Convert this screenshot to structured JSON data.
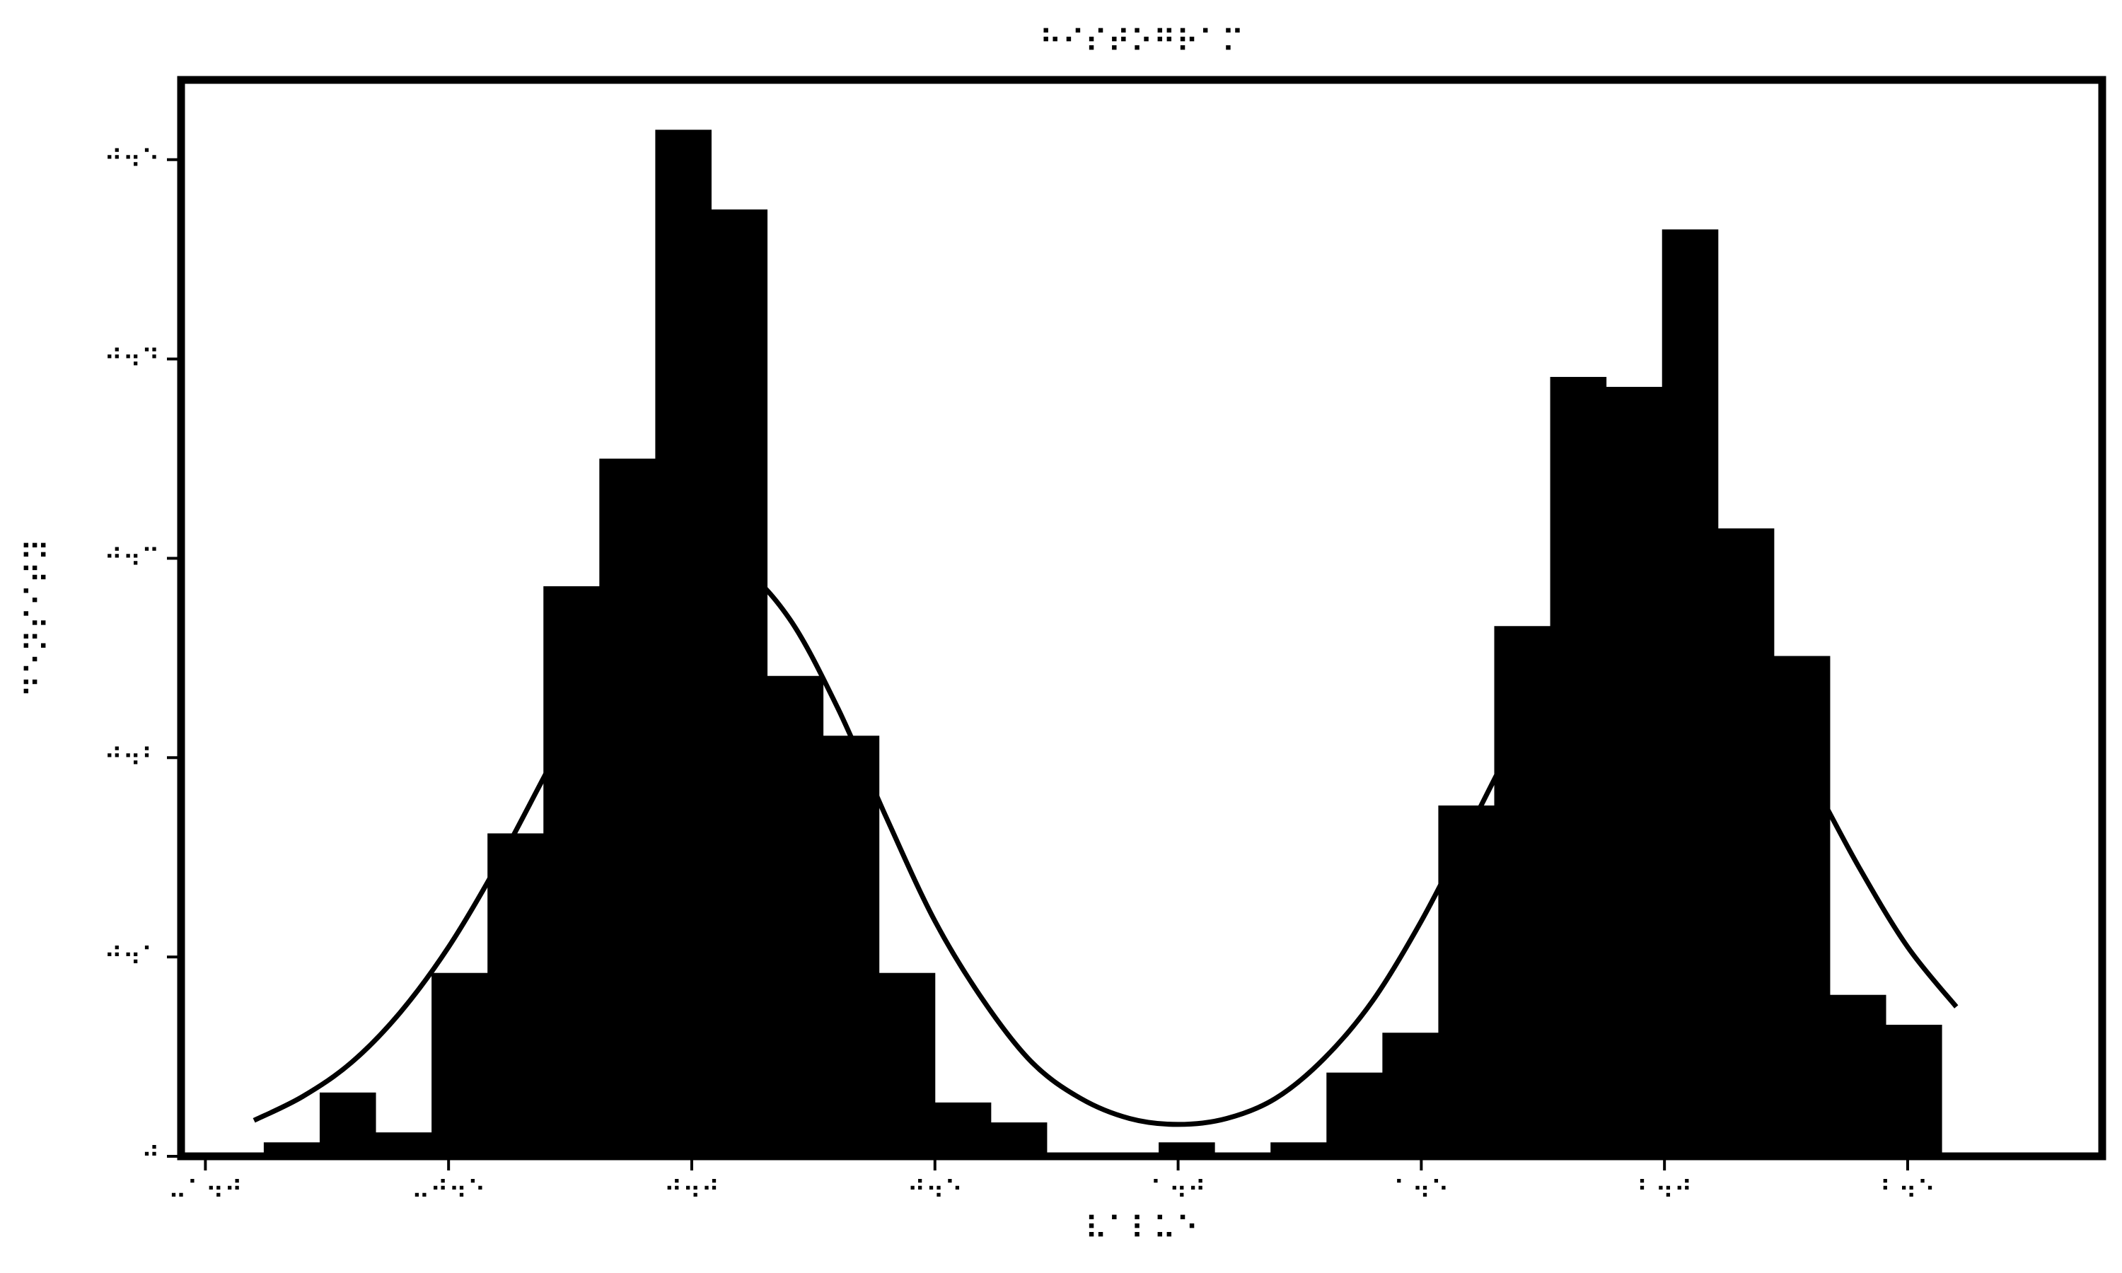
{
  "chart_data": {
    "type": "bar",
    "title": "⠓⠊⠎⠞⠕⠛⠗⠁⠍",
    "xlabel": "⠧⠁⠇⠥⠑",
    "ylabel": "⠙⠑⠝⠎⠊⠞⠽",
    "xlim": [
      -1.05,
      2.9
    ],
    "ylim": [
      0,
      0.54
    ],
    "xticks": [
      -1.0,
      -0.5,
      0.0,
      0.5,
      1.0,
      1.5,
      2.0,
      2.5
    ],
    "xtick_labels": [
      "⠤⠁⠲⠚",
      "⠤⠚⠲⠑",
      "⠚⠲⠚",
      "⠚⠲⠑",
      "⠁⠲⠚",
      "⠁⠲⠑",
      "⠃⠲⠚",
      "⠃⠲⠑"
    ],
    "yticks": [
      0.0,
      0.1,
      0.2,
      0.3,
      0.4,
      0.5
    ],
    "ytick_labels": [
      "⠚",
      "⠚⠲⠁",
      "⠚⠲⠃",
      "⠚⠲⠉",
      "⠚⠲⠙",
      "⠚⠲⠑"
    ],
    "grid": false,
    "legend": "none",
    "colors": {
      "bars": "#000000",
      "curve": "#000000",
      "frame": "#000000",
      "background": "#ffffff"
    },
    "bins": [
      {
        "x0": -0.88,
        "x1": -0.765,
        "value": 0.007
      },
      {
        "x0": -0.765,
        "x1": -0.65,
        "value": 0.032
      },
      {
        "x0": -0.65,
        "x1": -0.535,
        "value": 0.012
      },
      {
        "x0": -0.535,
        "x1": -0.42,
        "value": 0.092
      },
      {
        "x0": -0.42,
        "x1": -0.305,
        "value": 0.162
      },
      {
        "x0": -0.305,
        "x1": -0.19,
        "value": 0.286
      },
      {
        "x0": -0.19,
        "x1": -0.075,
        "value": 0.35
      },
      {
        "x0": -0.075,
        "x1": 0.04,
        "value": 0.515
      },
      {
        "x0": 0.04,
        "x1": 0.155,
        "value": 0.475
      },
      {
        "x0": 0.155,
        "x1": 0.27,
        "value": 0.241
      },
      {
        "x0": 0.27,
        "x1": 0.385,
        "value": 0.211
      },
      {
        "x0": 0.385,
        "x1": 0.5,
        "value": 0.092
      },
      {
        "x0": 0.5,
        "x1": 0.615,
        "value": 0.027
      },
      {
        "x0": 0.615,
        "x1": 0.73,
        "value": 0.017
      },
      {
        "x0": 0.73,
        "x1": 0.845,
        "value": 0.0
      },
      {
        "x0": 0.845,
        "x1": 0.96,
        "value": 0.0
      },
      {
        "x0": 0.96,
        "x1": 1.075,
        "value": 0.007
      },
      {
        "x0": 1.075,
        "x1": 1.19,
        "value": 0.0
      },
      {
        "x0": 1.19,
        "x1": 1.305,
        "value": 0.007
      },
      {
        "x0": 1.305,
        "x1": 1.42,
        "value": 0.042
      },
      {
        "x0": 1.42,
        "x1": 1.535,
        "value": 0.062
      },
      {
        "x0": 1.535,
        "x1": 1.65,
        "value": 0.176
      },
      {
        "x0": 1.65,
        "x1": 1.765,
        "value": 0.266
      },
      {
        "x0": 1.765,
        "x1": 1.88,
        "value": 0.391
      },
      {
        "x0": 1.88,
        "x1": 1.995,
        "value": 0.386
      },
      {
        "x0": 1.995,
        "x1": 2.11,
        "value": 0.465
      },
      {
        "x0": 2.11,
        "x1": 2.225,
        "value": 0.315
      },
      {
        "x0": 2.225,
        "x1": 2.34,
        "value": 0.251
      },
      {
        "x0": 2.34,
        "x1": 2.455,
        "value": 0.081
      },
      {
        "x0": 2.455,
        "x1": 2.57,
        "value": 0.066
      }
    ],
    "curve": {
      "x": [
        -0.9,
        -0.8,
        -0.7,
        -0.6,
        -0.5,
        -0.4,
        -0.3,
        -0.2,
        -0.1,
        0.0,
        0.1,
        0.2,
        0.3,
        0.4,
        0.5,
        0.6,
        0.7,
        0.8,
        0.9,
        1.0,
        1.1,
        1.2,
        1.3,
        1.4,
        1.5,
        1.6,
        1.7,
        1.8,
        1.9,
        2.0,
        2.1,
        2.2,
        2.3,
        2.4,
        2.5,
        2.6
      ],
      "y": [
        0.018,
        0.03,
        0.047,
        0.072,
        0.105,
        0.146,
        0.192,
        0.238,
        0.275,
        0.296,
        0.295,
        0.27,
        0.225,
        0.17,
        0.118,
        0.078,
        0.047,
        0.029,
        0.019,
        0.016,
        0.019,
        0.029,
        0.049,
        0.078,
        0.118,
        0.165,
        0.212,
        0.25,
        0.272,
        0.277,
        0.262,
        0.232,
        0.19,
        0.145,
        0.105,
        0.075
      ]
    }
  }
}
